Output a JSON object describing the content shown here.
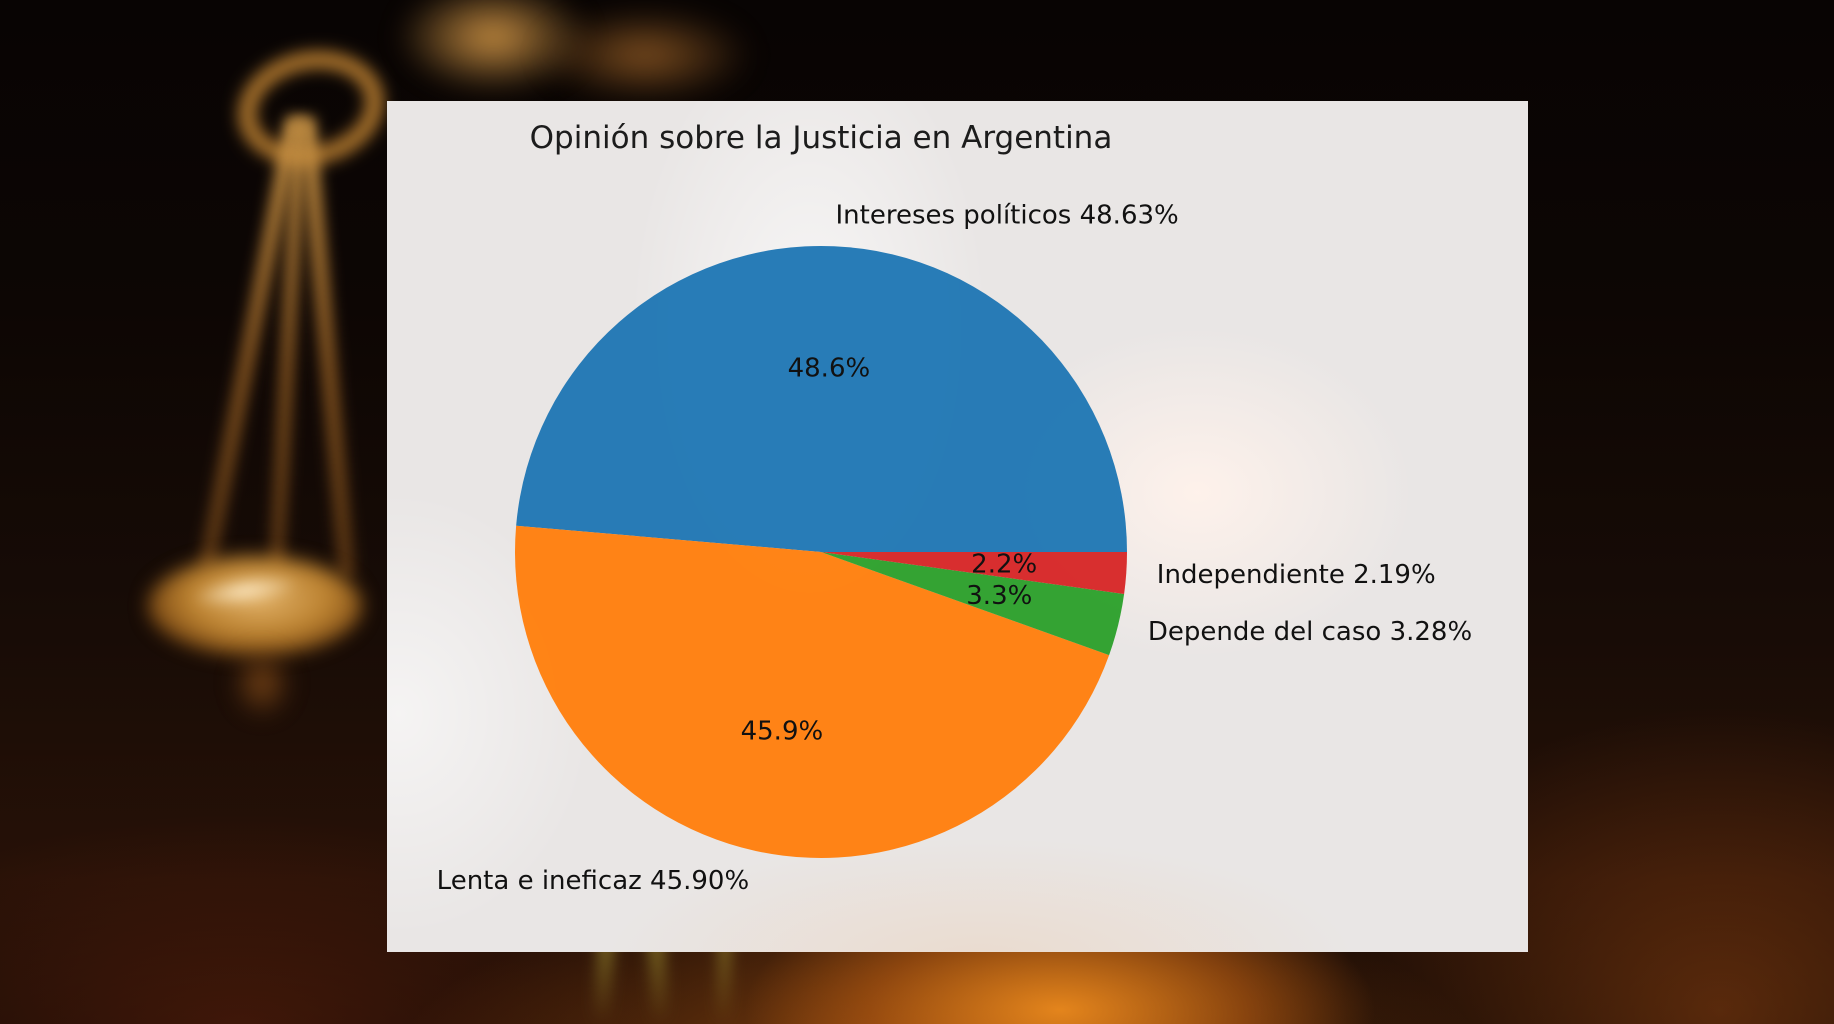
{
  "chart_data": {
    "type": "pie",
    "title": "Opinión sobre la Justicia en Argentina",
    "categories": [
      "Intereses políticos",
      "Lenta e ineficaz",
      "Depende del caso",
      "Independiente"
    ],
    "values": [
      48.63,
      45.9,
      3.28,
      2.19
    ],
    "labels": [
      "Intereses políticos 48.63%",
      "Lenta e ineficaz 45.90%",
      "Depende del caso 3.28%",
      "Independiente 2.19%"
    ],
    "pct_labels": [
      "48.6%",
      "45.9%",
      "3.3%",
      "2.2%"
    ],
    "colors": [
      "#1f77b4",
      "#ff7f0e",
      "#2ca02c",
      "#d62728"
    ],
    "start_angle": 0,
    "counterclock": true,
    "label_distance": 1.1,
    "pct_distance": 0.6,
    "legend": "none",
    "background_panel_color": "#e9e6e5",
    "text_color": "#111111"
  }
}
